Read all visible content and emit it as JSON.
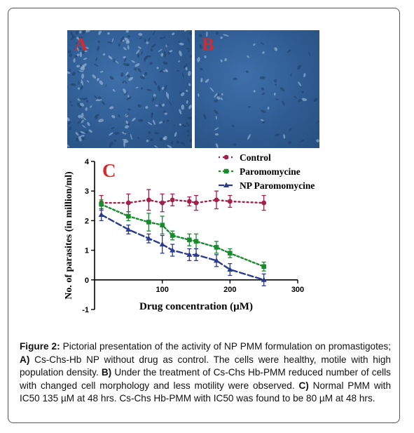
{
  "panels": {
    "a_label": "A",
    "b_label": "B"
  },
  "chart_data": {
    "type": "line",
    "panel_label": "C",
    "xlabel": "Drug concentration (µM)",
    "ylabel": "No. of parasites (in million/ml)",
    "xlim": [
      0,
      300
    ],
    "ylim": [
      -1,
      4
    ],
    "xticks": [
      100,
      200,
      300
    ],
    "yticks": [
      -1,
      0,
      1,
      2,
      3,
      4
    ],
    "grid": false,
    "legend_position": "top-right",
    "series": [
      {
        "name": "Control",
        "color": "#a3204a",
        "marker": "circle",
        "x": [
          10,
          50,
          80,
          100,
          115,
          140,
          150,
          180,
          200,
          250
        ],
        "y": [
          2.6,
          2.6,
          2.7,
          2.6,
          2.7,
          2.65,
          2.6,
          2.7,
          2.65,
          2.6
        ],
        "err": [
          0.25,
          0.3,
          0.35,
          0.3,
          0.2,
          0.15,
          0.25,
          0.3,
          0.2,
          0.25
        ]
      },
      {
        "name": "Paromomycine",
        "color": "#1a8a2e",
        "marker": "square",
        "x": [
          10,
          50,
          80,
          100,
          115,
          140,
          150,
          180,
          200,
          250
        ],
        "y": [
          2.55,
          2.15,
          1.95,
          1.85,
          1.5,
          1.35,
          1.3,
          1.1,
          0.9,
          0.45
        ],
        "err": [
          0.15,
          0.15,
          0.3,
          0.3,
          0.15,
          0.2,
          0.25,
          0.2,
          0.15,
          0.15
        ]
      },
      {
        "name": "NP Paromomycine",
        "color": "#2a3a8c",
        "marker": "triangle",
        "x": [
          10,
          50,
          80,
          100,
          115,
          140,
          150,
          180,
          200,
          250
        ],
        "y": [
          2.2,
          1.7,
          1.4,
          1.2,
          1.0,
          0.85,
          0.85,
          0.65,
          0.35,
          0.0
        ],
        "err": [
          0.2,
          0.15,
          0.15,
          0.3,
          0.2,
          0.2,
          0.2,
          0.2,
          0.2,
          0.2
        ]
      }
    ]
  },
  "caption": {
    "label": "Figure 2:",
    "intro": " Pictorial presentation of the activity of NP PMM formulation on promastigotes; ",
    "a_tag": "A)",
    "a_text": " Cs-Chs-Hb NP without drug as control. The cells were healthy, motile with high population density. ",
    "b_tag": "B)",
    "b_text": " Under the treatment of Cs-Chs Hb-PMM reduced number of cells with changed cell morphology and less motility were observed. ",
    "c_tag": "C)",
    "c_text": " Normal PMM with IC50 135 µM at 48 hrs. Cs-Chs Hb-PMM with IC50 was found to be 80 µM at 48 hrs."
  }
}
